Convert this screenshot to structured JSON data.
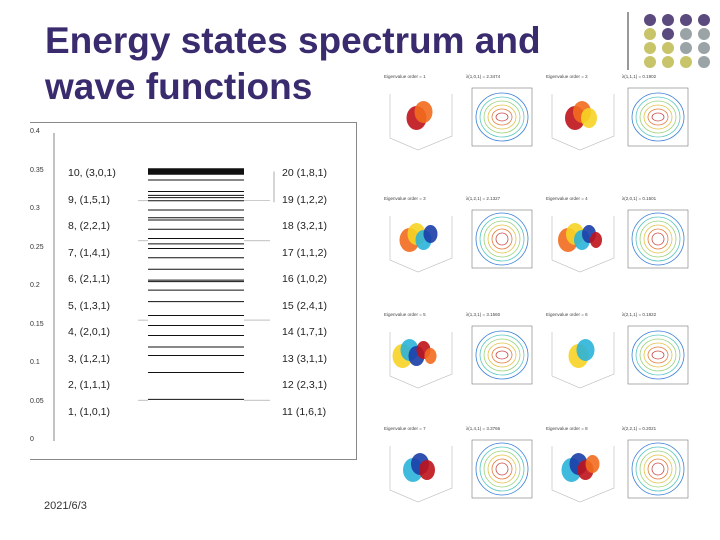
{
  "slide": {
    "title_line1": "Energy states spectrum and",
    "title_line2": "wave functions",
    "date": "2021/6/3"
  },
  "colors": {
    "title": "#3a2a6e",
    "dot_purple": "#5b4a7d",
    "dot_olive": "#c7c46a",
    "dot_gray": "#9aa4a6"
  },
  "spectrum": {
    "y_ticks": [
      "0.4",
      "0.35",
      "0.3",
      "0.25",
      "0.2",
      "0.15",
      "0.1",
      "0.05",
      "0"
    ],
    "left_labels": [
      "10, (3,0,1)",
      "9, (1,5,1)",
      "8, (2,2,1)",
      "7, (1,4,1)",
      "6, (2,1,1)",
      "5, (1,3,1)",
      "4, (2,0,1)",
      "3, (1,2,1)",
      "2, (1,1,1)",
      "1, (1,0,1)"
    ],
    "right_labels": [
      "20  (1,8,1)",
      "19  (1,2,2)",
      "18  (3,2,1)",
      "17  (1,1,2)",
      "16  (1,0,2)",
      "15  (2,4,1)",
      "14  (1,7,1)",
      "13  (3,1,1)",
      "12  (2,3,1)",
      "11  (1,6,1)"
    ],
    "energy_levels": [
      0.054,
      0.089,
      0.111,
      0.122,
      0.137,
      0.15,
      0.163,
      0.181,
      0.196,
      0.207,
      0.209,
      0.223,
      0.238,
      0.25,
      0.256,
      0.263,
      0.275,
      0.287,
      0.29,
      0.3,
      0.312,
      0.316,
      0.319,
      0.324,
      0.339,
      0.347,
      0.349,
      0.351,
      0.353
    ]
  },
  "gallery": {
    "captions": [
      "Eigenvalue order = 1",
      "λ(1,0,1) = 2.3474",
      "Eigenvalue order = 2",
      "λ(1,1,1) = 0.1902",
      "Eigenvalue order = 3",
      "λ(1,2,1) = 2.1327",
      "Eigenvalue order = 4",
      "λ(2,0,1) = 0.1501",
      "Eigenvalue order = 5",
      "λ(1,3,1) = 3.1560",
      "Eigenvalue order = 6",
      "λ(2,1,1) = 0.1822",
      "Eigenvalue order = 7",
      "λ(1,4,1) = 3.3766",
      "Eigenvalue order = 8",
      "λ(2,2,1) = 0.2021"
    ]
  }
}
